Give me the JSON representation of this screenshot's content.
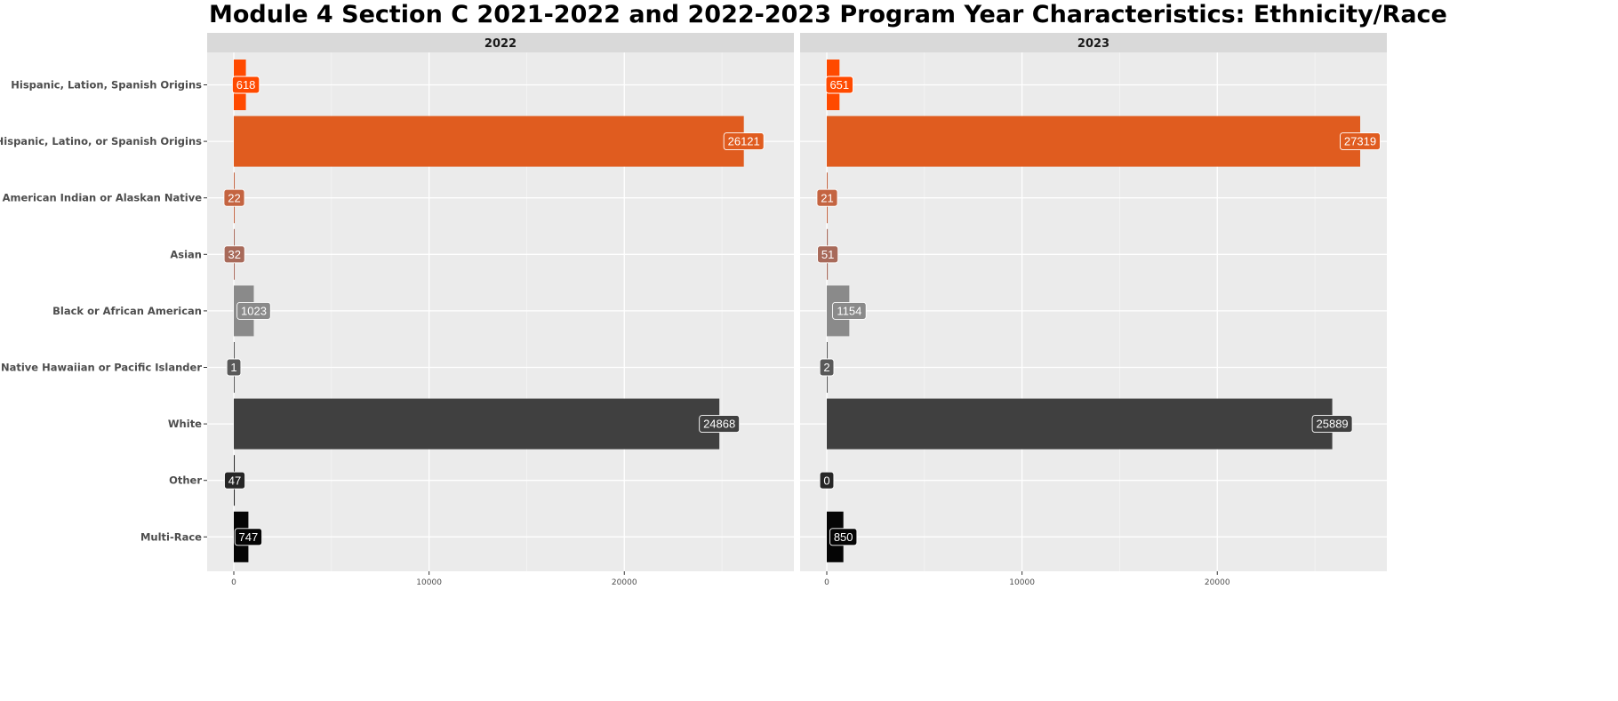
{
  "chart_data": {
    "type": "bar",
    "orientation": "horizontal",
    "title": "Module 4 Section C 2021-2022 and 2022-2023 Program Year Characteristics: Ethnicity/Race",
    "xlabel": "",
    "ylabel": "",
    "categories": [
      "Hispanic, Lation, Spanish Origins",
      "Not Hispanic, Latino, or Spanish Origins",
      "American Indian or Alaskan Native",
      "Asian",
      "Black or African American",
      "Native Hawaiian or Pacific Islander",
      "White",
      "Other",
      "Multi-Race"
    ],
    "category_colors": [
      "#FF4A00",
      "#E05C1F",
      "#C46441",
      "#A86A5A",
      "#8A8A8A",
      "#595959",
      "#404040",
      "#262626",
      "#050505"
    ],
    "facets": [
      {
        "label": "2022",
        "values": [
          618,
          26121,
          22,
          32,
          1023,
          1,
          24868,
          47,
          747
        ]
      },
      {
        "label": "2023",
        "values": [
          651,
          27319,
          21,
          51,
          1154,
          2,
          25889,
          0,
          850
        ]
      }
    ],
    "x_ticks": [
      0,
      10000,
      20000
    ],
    "x_tick_labels": [
      "0",
      "10000",
      "20000"
    ],
    "xlim": [
      -1366,
      28685
    ],
    "grid": true,
    "legend": "none"
  }
}
